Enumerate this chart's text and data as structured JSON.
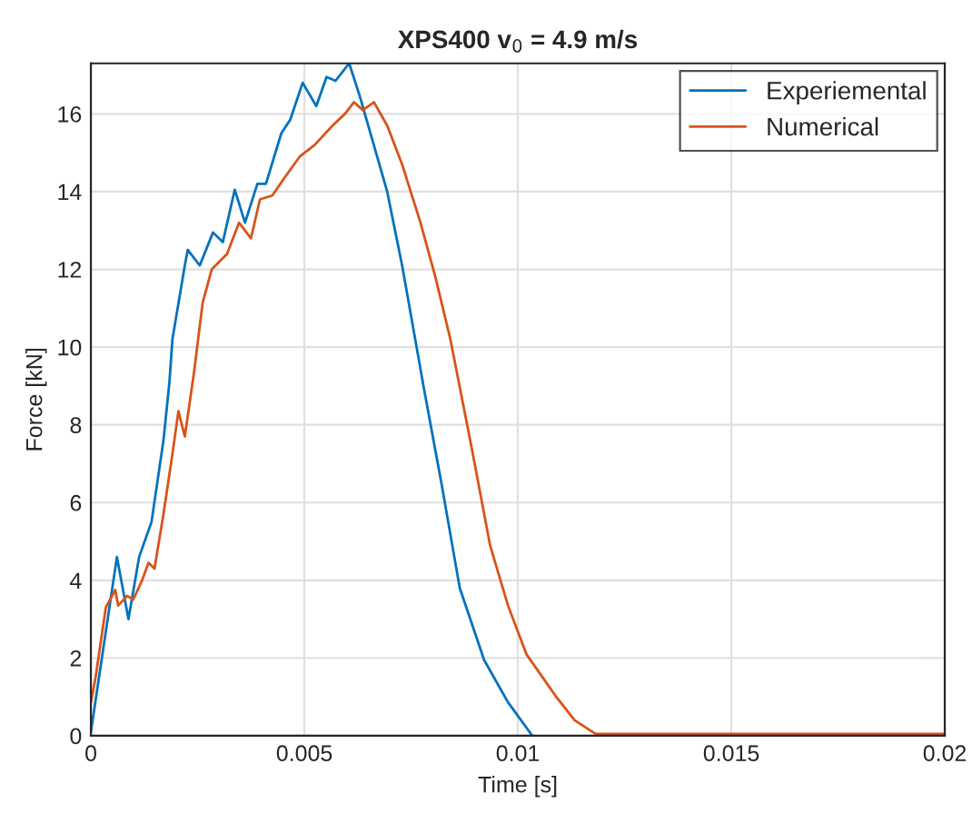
{
  "chart_data": {
    "type": "line",
    "title": "XPS400 v$_{0}$ = 4.9 m/s",
    "xlabel": "Time [s]",
    "ylabel": "Force [kN]",
    "series": [
      {
        "name": "Experiemental",
        "color": "#0072bd",
        "x": [
          0,
          0.00061,
          0.00088,
          0.00113,
          0.00142,
          0.0017,
          0.00184,
          0.00191,
          0.0022,
          0.00227,
          0.00255,
          0.00286,
          0.00309,
          0.00337,
          0.00361,
          0.0039,
          0.0041,
          0.00446,
          0.00467,
          0.00496,
          0.00528,
          0.00552,
          0.00573,
          0.00605,
          0.0063,
          0.00694,
          0.00729,
          0.00779,
          0.00821,
          0.00864,
          0.00921,
          0.00977,
          0.01034
        ],
        "values": [
          0.1,
          4.6,
          3.0,
          4.6,
          5.5,
          7.6,
          9.1,
          10.2,
          12.1,
          12.5,
          12.1,
          12.95,
          12.7,
          14.05,
          13.2,
          14.2,
          14.2,
          15.5,
          15.85,
          16.8,
          16.2,
          16.95,
          16.85,
          17.3,
          16.45,
          14.0,
          12.1,
          9.0,
          6.5,
          3.8,
          1.95,
          0.86,
          0
        ]
      },
      {
        "name": "Numerical",
        "color": "#d95319",
        "x": [
          0,
          0.00011,
          0.00035,
          0.00057,
          0.00064,
          0.00085,
          0.00099,
          0.0012,
          0.00135,
          0.00149,
          0.0017,
          0.00191,
          0.00205,
          0.0022,
          0.00241,
          0.00262,
          0.00283,
          0.00319,
          0.00347,
          0.00375,
          0.00396,
          0.00425,
          0.00453,
          0.00489,
          0.00524,
          0.00566,
          0.00595,
          0.00616,
          0.00637,
          0.00663,
          0.00694,
          0.00729,
          0.00772,
          0.00807,
          0.00842,
          0.00892,
          0.00935,
          0.00977,
          0.0102,
          0.0109,
          0.01133,
          0.01182,
          0.02
        ],
        "values": [
          0.85,
          1.5,
          3.3,
          3.75,
          3.35,
          3.6,
          3.5,
          4.0,
          4.45,
          4.3,
          5.7,
          7.25,
          8.35,
          7.7,
          9.3,
          11.15,
          12.0,
          12.4,
          13.2,
          12.8,
          13.8,
          13.9,
          14.35,
          14.9,
          15.2,
          15.7,
          16.0,
          16.3,
          16.1,
          16.3,
          15.7,
          14.7,
          13.2,
          11.8,
          10.2,
          7.4,
          4.9,
          3.35,
          2.1,
          1.0,
          0.4,
          0.05,
          0.05
        ]
      }
    ],
    "xlim": [
      0,
      0.02
    ],
    "xticks": [
      0,
      0.005,
      0.01,
      0.015,
      0.02
    ],
    "ylim": [
      0,
      17.3
    ],
    "yticks": [
      0,
      2,
      4,
      6,
      8,
      10,
      12,
      14,
      16
    ],
    "grid": true,
    "legend": "top right",
    "line_style": "solid",
    "marker": "none"
  }
}
